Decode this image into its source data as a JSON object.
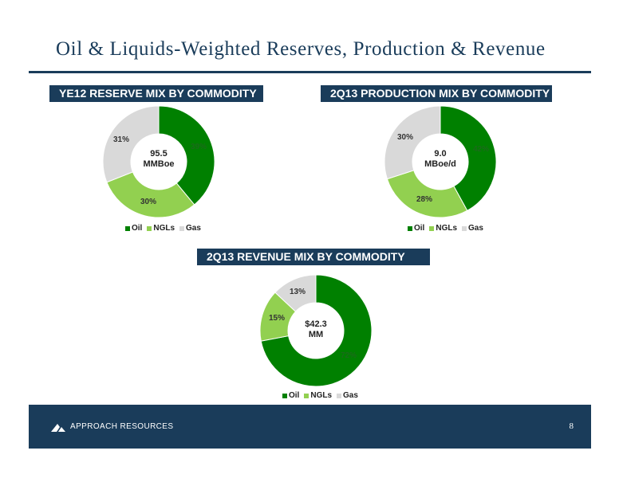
{
  "page": {
    "title": "Oil & Liquids-Weighted Reserves, Production & Revenue",
    "company": "APPROACH RESOURCES",
    "page_number": "8"
  },
  "colors": {
    "oil": "#008000",
    "ngls": "#92d050",
    "gas": "#d9d9d9",
    "brand": "#1a3c5a"
  },
  "chart_data": [
    {
      "type": "pie",
      "donut": true,
      "title": "YE12 RESERVE MIX BY COMMODITY",
      "center_label": [
        "95.5",
        "MMBoe"
      ],
      "categories": [
        "Oil",
        "NGLs",
        "Gas"
      ],
      "values": [
        39,
        30,
        31
      ],
      "labels": [
        "39%",
        "30%",
        "31%"
      ],
      "legend": "bottom"
    },
    {
      "type": "pie",
      "donut": true,
      "title": "2Q13 PRODUCTION MIX BY COMMODITY",
      "center_label": [
        "9.0",
        "MBoe/d"
      ],
      "categories": [
        "Oil",
        "NGLs",
        "Gas"
      ],
      "values": [
        42,
        28,
        30
      ],
      "labels": [
        "42%",
        "28%",
        "30%"
      ],
      "legend": "bottom"
    },
    {
      "type": "pie",
      "donut": true,
      "title": "2Q13 REVENUE MIX BY COMMODITY",
      "center_label": [
        "$42.3",
        "MM"
      ],
      "categories": [
        "Oil",
        "NGLs",
        "Gas"
      ],
      "values": [
        72,
        15,
        13
      ],
      "labels": [
        "72%",
        "15%",
        "13%"
      ],
      "legend": "bottom"
    }
  ]
}
